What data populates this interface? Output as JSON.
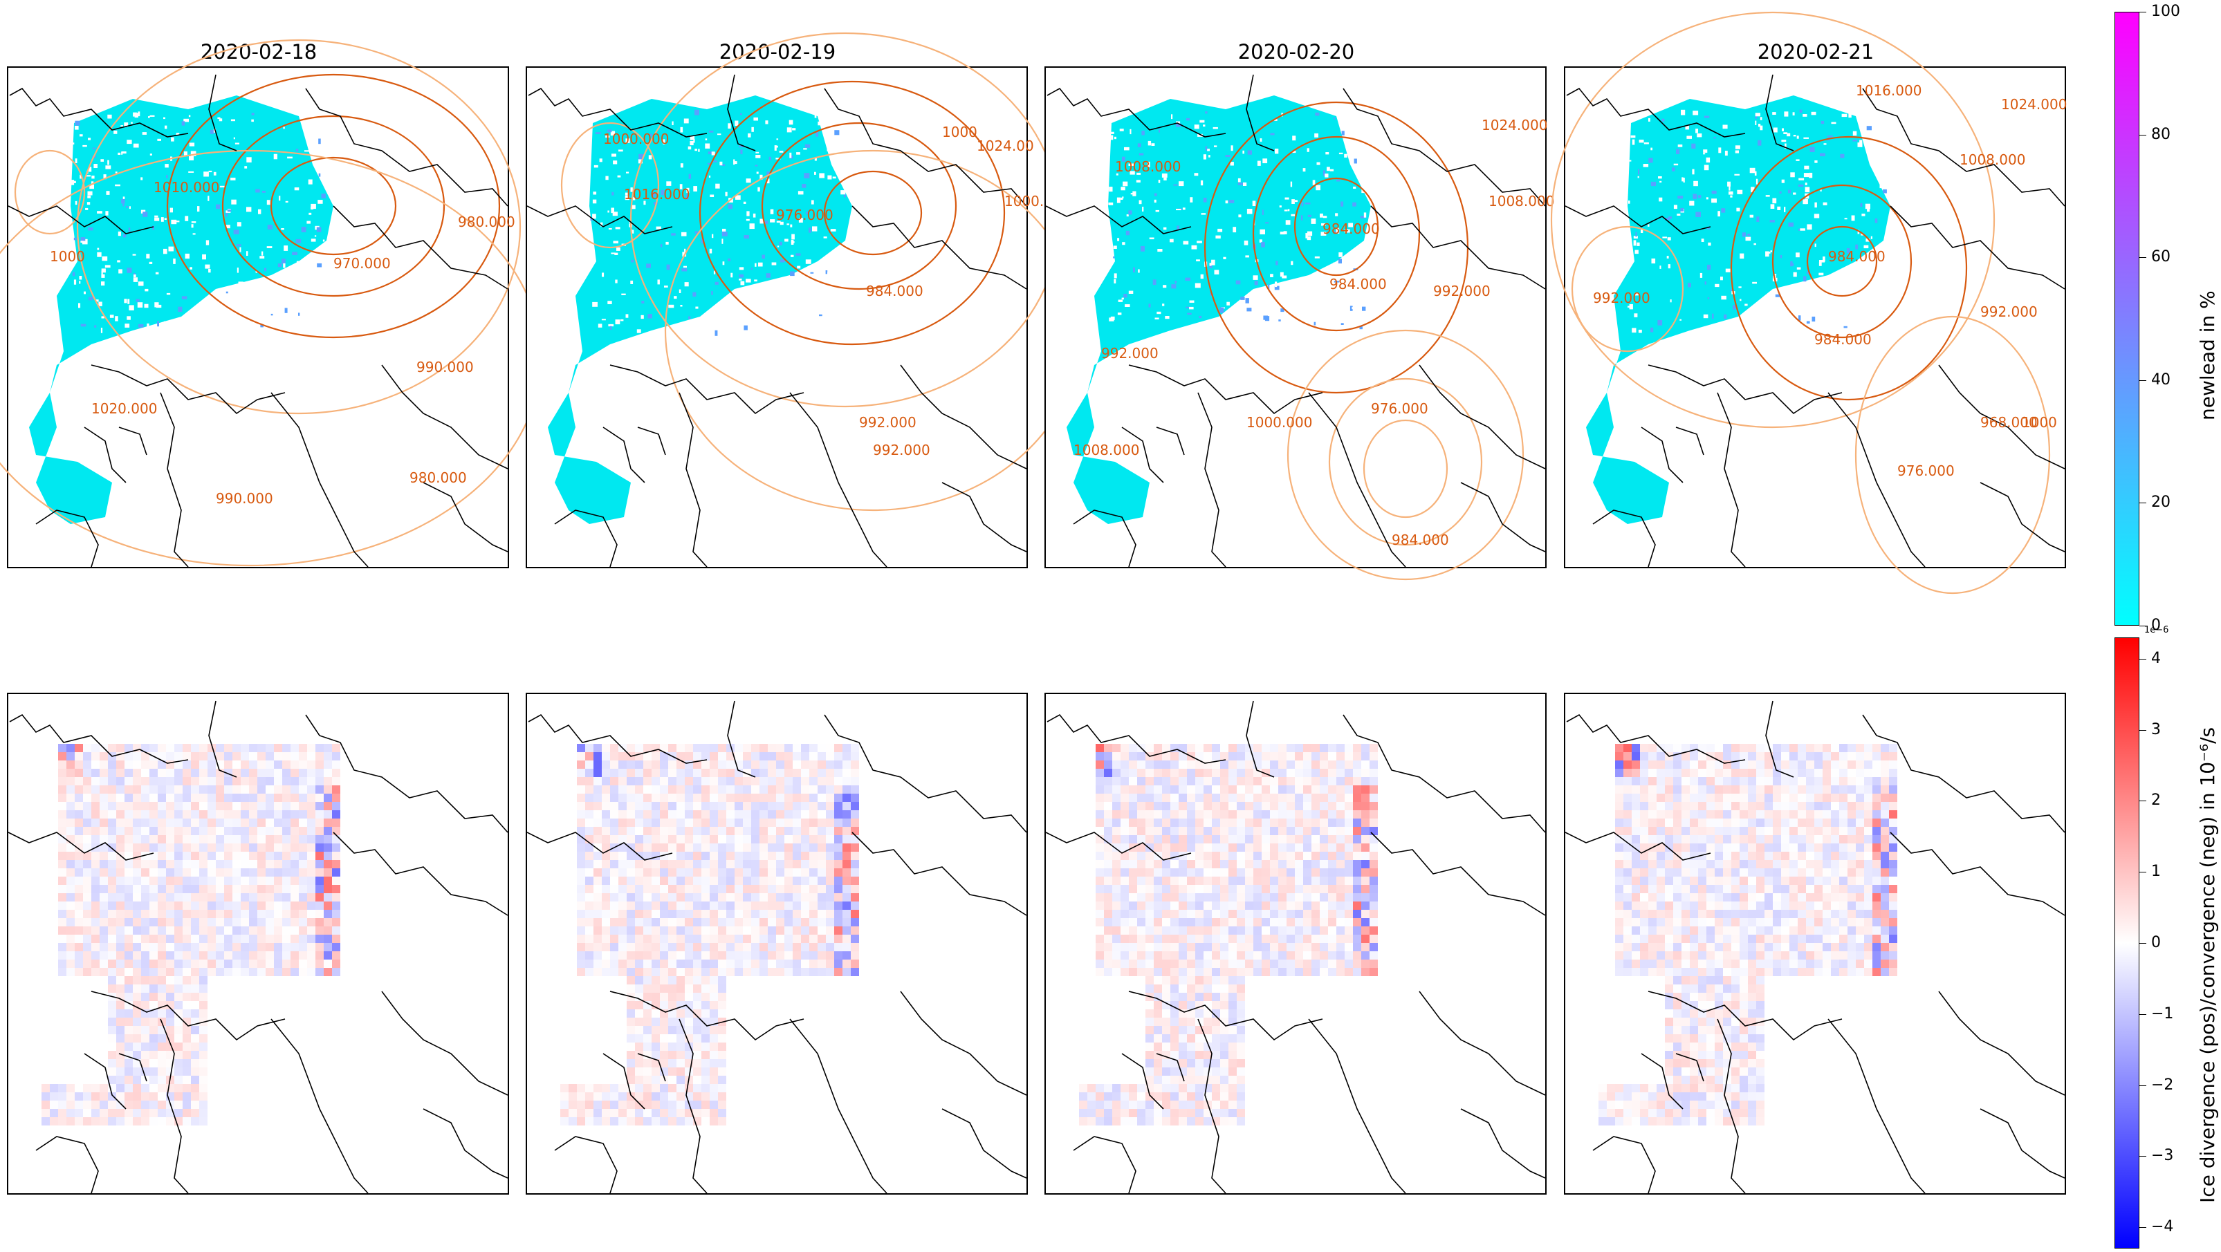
{
  "panels": [
    {
      "date": "2020-02-18",
      "contours": [
        "1010.000",
        "970.000",
        "980.000",
        "990.000",
        "1000",
        "1020.000",
        "990.000",
        "980.000"
      ]
    },
    {
      "date": "2020-02-19",
      "contours": [
        "1000.000",
        "1016.000",
        "1024.00",
        "976.000",
        "984.000",
        "1000.000",
        "992.000",
        "1000",
        "992.000"
      ]
    },
    {
      "date": "2020-02-20",
      "contours": [
        "1008.000",
        "1024.000",
        "1008.000",
        "984.000",
        "984.000",
        "992.000",
        "1000.000",
        "992.000",
        "1008.000",
        "976.000",
        "984.000"
      ]
    },
    {
      "date": "2020-02-21",
      "contours": [
        "1016.000",
        "1024.000",
        "1008.000",
        "984.000",
        "992.000",
        "984.000",
        "992.000",
        "968.000",
        "976.000",
        "1000"
      ]
    }
  ],
  "colorbar_top": {
    "label": "newlead in %",
    "ticks": [
      "0",
      "20",
      "40",
      "60",
      "80",
      "100"
    ],
    "color_low": "#00ffff",
    "color_high": "#ff00ff"
  },
  "colorbar_bottom": {
    "label": "Ice divergence (pos)/convergence (neg) in 10⁻⁶/s",
    "exponent": "1e−6",
    "ticks": [
      "−4",
      "−3",
      "−2",
      "−1",
      "0",
      "1",
      "2",
      "3",
      "4"
    ],
    "color_low": "#0000ff",
    "color_mid": "#ffffff",
    "color_high": "#ff0000"
  },
  "colors": {
    "lead": "#00e8f0",
    "contour_dark": "#d85a10",
    "contour_light": "#f6b27a",
    "coast": "#000000"
  }
}
